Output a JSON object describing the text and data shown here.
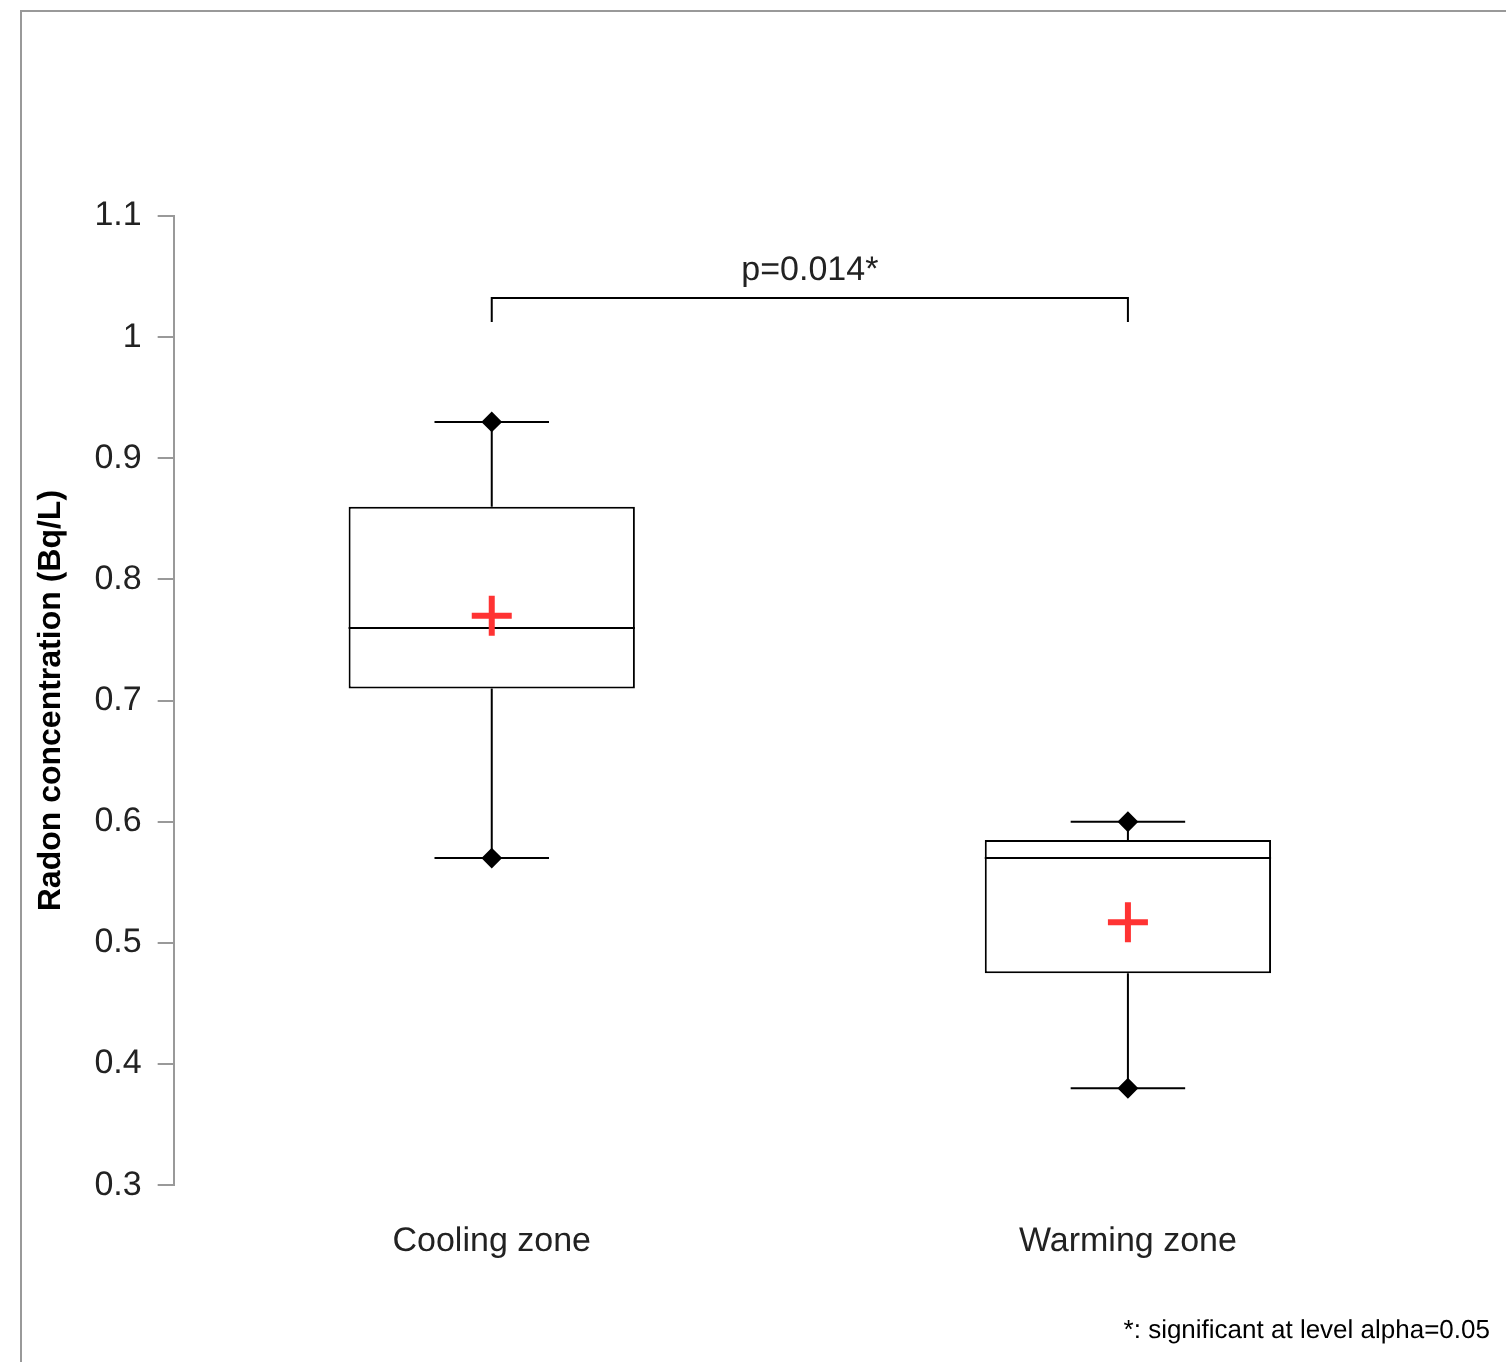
{
  "chart_data": {
    "type": "box",
    "ylabel": "Radon concentration (Bq/L)",
    "categories": [
      "Cooling zone",
      "Warming zone"
    ],
    "boxes": [
      {
        "low": 0.57,
        "q1": 0.71,
        "median": 0.76,
        "q3": 0.86,
        "high": 0.93,
        "mean": 0.77
      },
      {
        "low": 0.38,
        "q1": 0.475,
        "median": 0.57,
        "q3": 0.585,
        "high": 0.6,
        "mean": 0.517
      }
    ],
    "series": [
      {
        "type": "scatter",
        "color": "#000000",
        "marker": "diamond",
        "x": [
          "Cooling zone",
          "Warming zone",
          "Cooling zone",
          "Warming zone"
        ],
        "values": [
          0.93,
          0.6,
          0.57,
          0.38
        ]
      }
    ],
    "ylim": [
      0.3,
      1.1
    ],
    "yticks": [
      0.3,
      0.4,
      0.5,
      0.6,
      0.7,
      0.8,
      0.9,
      1,
      1.1
    ],
    "grid": false,
    "legend": false,
    "annotations": [
      "p=0.014*",
      "*: significant at level alpha=0.05"
    ]
  }
}
